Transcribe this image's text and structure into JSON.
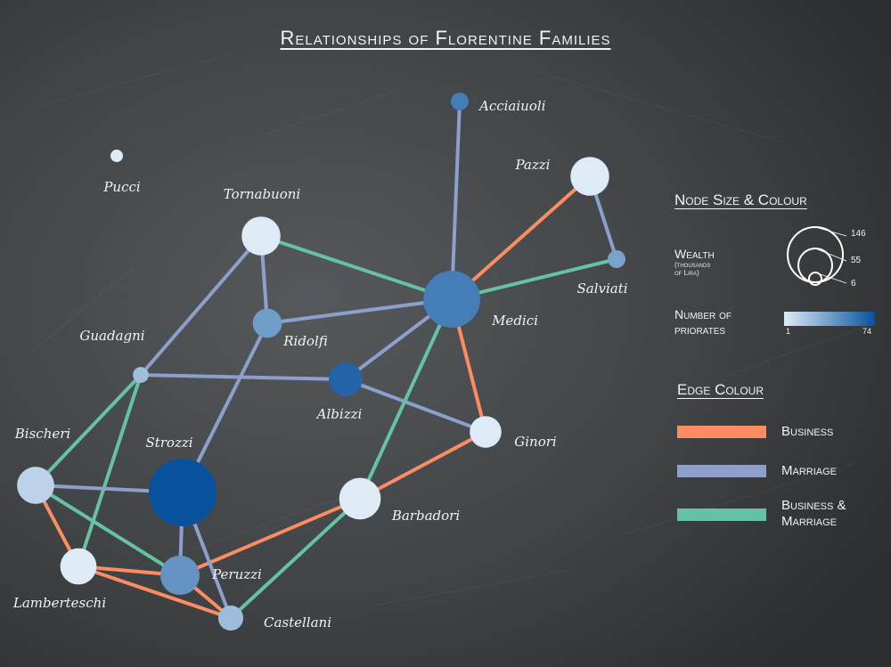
{
  "title": "Relationships of Florentine Families",
  "colors": {
    "background": "#3f4244",
    "business": "#fc8d62",
    "marriage": "#8da0cb",
    "business_marriage": "#66c2a5",
    "node_low": "#deebf7",
    "node_high": "#08519c",
    "text": "#f2f2f2"
  },
  "nodes": [
    {
      "id": "acciaiuoli",
      "label": "Acciaiuoli",
      "wealth": 10,
      "priorates": 53
    },
    {
      "id": "pazzi",
      "label": "Pazzi",
      "wealth": 48,
      "priorates": 0
    },
    {
      "id": "pucci",
      "label": "Pucci",
      "wealth": 3,
      "priorates": 0
    },
    {
      "id": "tornabuoni",
      "label": "Tornabuoni",
      "wealth": 48,
      "priorates": 0
    },
    {
      "id": "salviati",
      "label": "Salviati",
      "wealth": 10,
      "priorates": 35
    },
    {
      "id": "medici",
      "label": "Medici",
      "wealth": 103,
      "priorates": 53
    },
    {
      "id": "ridolfi",
      "label": "Ridolfi",
      "wealth": 27,
      "priorates": 38
    },
    {
      "id": "guadagni",
      "label": "Guadagni",
      "wealth": 8,
      "priorates": 21
    },
    {
      "id": "albizzi",
      "label": "Albizzi",
      "wealth": 36,
      "priorates": 65
    },
    {
      "id": "ginori",
      "label": "Ginori",
      "wealth": 32,
      "priorates": 0
    },
    {
      "id": "bischeri",
      "label": "Bischeri",
      "wealth": 44,
      "priorates": 12
    },
    {
      "id": "strozzi",
      "label": "Strozzi",
      "wealth": 146,
      "priorates": 74
    },
    {
      "id": "barbadori",
      "label": "Barbadori",
      "wealth": 55,
      "priorates": 0
    },
    {
      "id": "lamberteschi",
      "label": "Lamberteschi",
      "wealth": 42,
      "priorates": 0
    },
    {
      "id": "peruzzi",
      "label": "Peruzzi",
      "wealth": 49,
      "priorates": 42
    },
    {
      "id": "castellani",
      "label": "Castellani",
      "wealth": 20,
      "priorates": 22
    }
  ],
  "edges": [
    {
      "from": "acciaiuoli",
      "to": "medici",
      "type": "marriage"
    },
    {
      "from": "pazzi",
      "to": "medici",
      "type": "business"
    },
    {
      "from": "pazzi",
      "to": "salviati",
      "type": "marriage"
    },
    {
      "from": "salviati",
      "to": "medici",
      "type": "business_marriage"
    },
    {
      "from": "tornabuoni",
      "to": "medici",
      "type": "business_marriage"
    },
    {
      "from": "tornabuoni",
      "to": "ridolfi",
      "type": "marriage"
    },
    {
      "from": "tornabuoni",
      "to": "guadagni",
      "type": "marriage"
    },
    {
      "from": "ridolfi",
      "to": "medici",
      "type": "marriage"
    },
    {
      "from": "ridolfi",
      "to": "strozzi",
      "type": "marriage"
    },
    {
      "from": "albizzi",
      "to": "medici",
      "type": "marriage"
    },
    {
      "from": "albizzi",
      "to": "guadagni",
      "type": "marriage"
    },
    {
      "from": "albizzi",
      "to": "ginori",
      "type": "marriage"
    },
    {
      "from": "ginori",
      "to": "medici",
      "type": "business"
    },
    {
      "from": "barbadori",
      "to": "medici",
      "type": "business_marriage"
    },
    {
      "from": "barbadori",
      "to": "ginori",
      "type": "business"
    },
    {
      "from": "barbadori",
      "to": "peruzzi",
      "type": "business"
    },
    {
      "from": "barbadori",
      "to": "castellani",
      "type": "business_marriage"
    },
    {
      "from": "guadagni",
      "to": "bischeri",
      "type": "business_marriage"
    },
    {
      "from": "guadagni",
      "to": "lamberteschi",
      "type": "business_marriage"
    },
    {
      "from": "bischeri",
      "to": "strozzi",
      "type": "marriage"
    },
    {
      "from": "bischeri",
      "to": "peruzzi",
      "type": "business_marriage"
    },
    {
      "from": "bischeri",
      "to": "lamberteschi",
      "type": "business"
    },
    {
      "from": "strozzi",
      "to": "peruzzi",
      "type": "marriage"
    },
    {
      "from": "strozzi",
      "to": "castellani",
      "type": "marriage"
    },
    {
      "from": "lamberteschi",
      "to": "peruzzi",
      "type": "business"
    },
    {
      "from": "lamberteschi",
      "to": "castellani",
      "type": "business"
    },
    {
      "from": "peruzzi",
      "to": "castellani",
      "type": "business"
    }
  ],
  "legend": {
    "node_heading": "Node Size & Colour",
    "wealth_label": "Wealth",
    "wealth_sub1": "(thousands",
    "wealth_sub2": "of Lira)",
    "wealth_ticks": [
      "146",
      "55",
      "6"
    ],
    "priorates_label1": "Number of",
    "priorates_label2": "priorates",
    "priorates_min": "1",
    "priorates_max": "74",
    "edge_heading": "Edge Colour",
    "business_label": "Business",
    "marriage_label": "Marriage",
    "bm_label1": "Business &",
    "bm_label2": "Marriage"
  }
}
